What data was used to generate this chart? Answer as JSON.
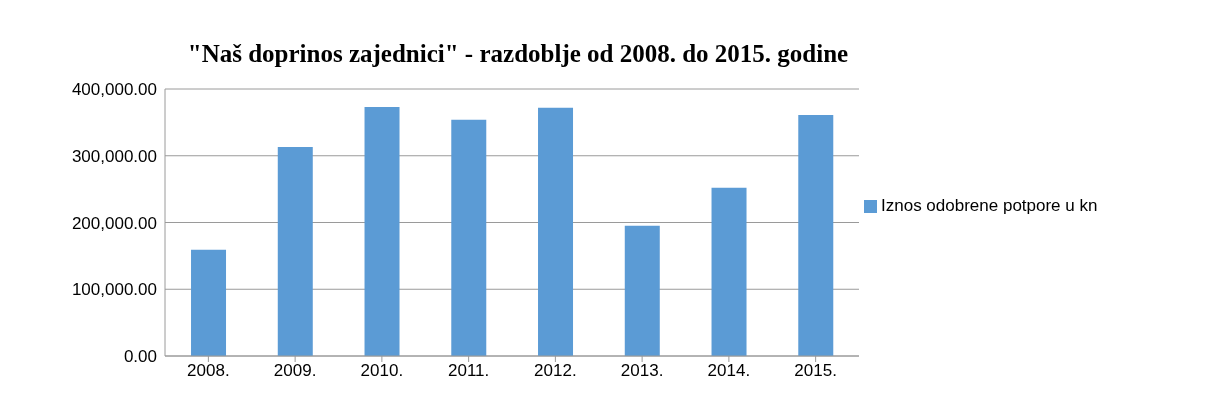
{
  "chart_data": {
    "type": "bar",
    "title": "\"Naš doprinos zajednici\" - razdoblje od 2008. do 2015. godine",
    "categories": [
      "2008.",
      "2009.",
      "2010.",
      "2011.",
      "2012.",
      "2013.",
      "2014.",
      "2015."
    ],
    "series": [
      {
        "name": "Iznos odobrene potpore u kn",
        "color": "#5b9bd5",
        "values": [
          159000,
          313000,
          373000,
          354000,
          372000,
          195000,
          252000,
          361000
        ]
      }
    ],
    "ylim": [
      0,
      400000
    ],
    "yticks": [
      {
        "value": 0,
        "label": "0.00"
      },
      {
        "value": 100000,
        "label": "100,000.00"
      },
      {
        "value": 200000,
        "label": "200,000.00"
      },
      {
        "value": 300000,
        "label": "300,000.00"
      },
      {
        "value": 400000,
        "label": "400,000.00"
      }
    ],
    "grid": "y",
    "legend": "right"
  }
}
